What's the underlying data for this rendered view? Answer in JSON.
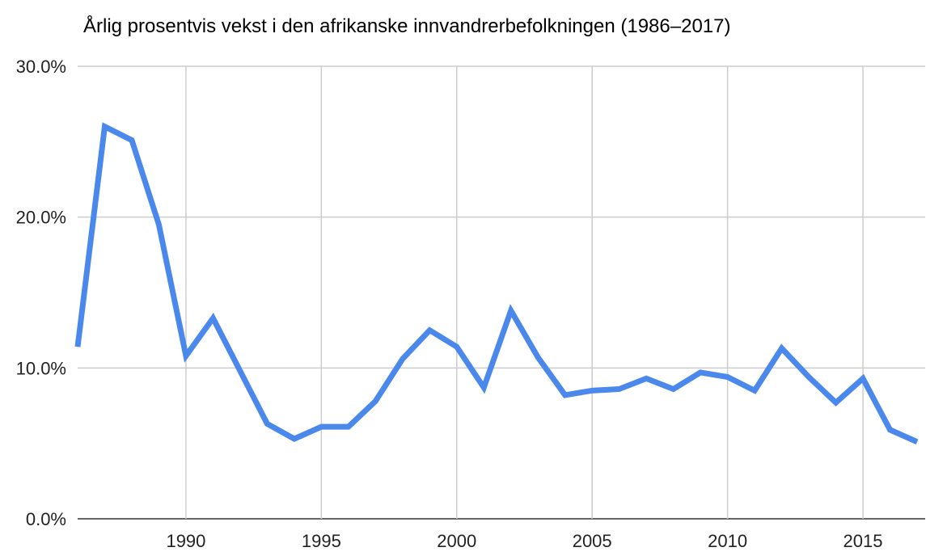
{
  "chart_data": {
    "type": "line",
    "title": "Årlig prosentvis vekst i den afrikanske innvandrerbefolkningen (1986–2017)",
    "xlabel": "",
    "ylabel": "",
    "xlim": [
      1986,
      2017
    ],
    "ylim": [
      0,
      30
    ],
    "grid": true,
    "line_color": "#4a88ec",
    "y_ticks": [
      "0.0%",
      "10.0%",
      "20.0%",
      "30.0%"
    ],
    "y_tick_values": [
      0,
      10,
      20,
      30
    ],
    "x_ticks": [
      "1990",
      "1995",
      "2000",
      "2005",
      "2010",
      "2015"
    ],
    "x_tick_values": [
      1990,
      1995,
      2000,
      2005,
      2010,
      2015
    ],
    "x": [
      1986,
      1987,
      1988,
      1989,
      1990,
      1991,
      1992,
      1993,
      1994,
      1995,
      1996,
      1997,
      1998,
      1999,
      2000,
      2001,
      2002,
      2003,
      2004,
      2005,
      2006,
      2007,
      2008,
      2009,
      2010,
      2011,
      2012,
      2013,
      2014,
      2015,
      2016,
      2017
    ],
    "series": [
      {
        "values": [
          11.4,
          26.0,
          25.1,
          19.5,
          10.8,
          13.3,
          9.8,
          6.3,
          5.3,
          6.1,
          6.1,
          7.8,
          10.6,
          12.5,
          11.4,
          8.7,
          13.8,
          10.7,
          8.2,
          8.5,
          8.6,
          9.3,
          8.6,
          9.7,
          9.4,
          8.5,
          11.3,
          9.4,
          7.7,
          9.3,
          5.9,
          5.1
        ]
      }
    ]
  }
}
